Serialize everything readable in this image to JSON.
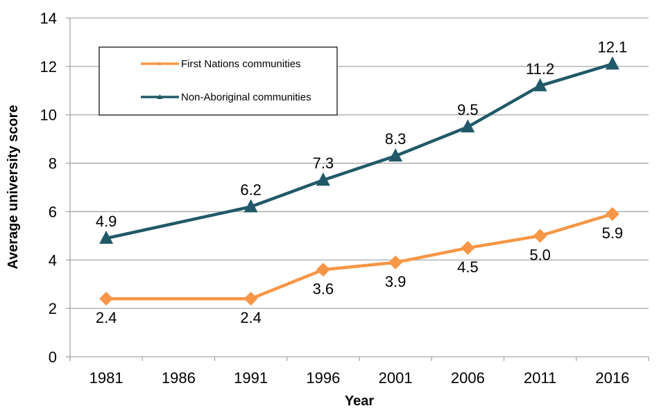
{
  "chart_data": {
    "type": "line",
    "title": "",
    "xlabel": "Year",
    "ylabel": "Average university score",
    "categories": [
      "1981",
      "1986",
      "1991",
      "1996",
      "2001",
      "2006",
      "2011",
      "2016"
    ],
    "ylim": [
      0,
      14
    ],
    "yticks": [
      0,
      2,
      4,
      6,
      8,
      10,
      12,
      14
    ],
    "ytick_labels": [
      "0",
      "2",
      "4",
      "6",
      "8",
      "10",
      "12",
      "14"
    ],
    "grid": "horizontal",
    "legend_position": "top-left",
    "series": [
      {
        "name": "First Nations communities",
        "color": "#F79646",
        "marker": "diamond",
        "values": [
          2.4,
          null,
          2.4,
          3.6,
          3.9,
          4.5,
          5.0,
          5.9
        ],
        "labels": [
          "2.4",
          null,
          "2.4",
          "3.6",
          "3.9",
          "4.5",
          "5.0",
          "5.9"
        ],
        "label_position": "below"
      },
      {
        "name": "Non-Aboriginal communities",
        "color": "#215968",
        "marker": "triangle",
        "values": [
          4.9,
          null,
          6.2,
          7.3,
          8.3,
          9.5,
          11.2,
          12.1
        ],
        "labels": [
          "4.9",
          null,
          "6.2",
          "7.3",
          "8.3",
          "9.5",
          "11.2",
          "12.1"
        ],
        "label_position": "above"
      }
    ]
  }
}
